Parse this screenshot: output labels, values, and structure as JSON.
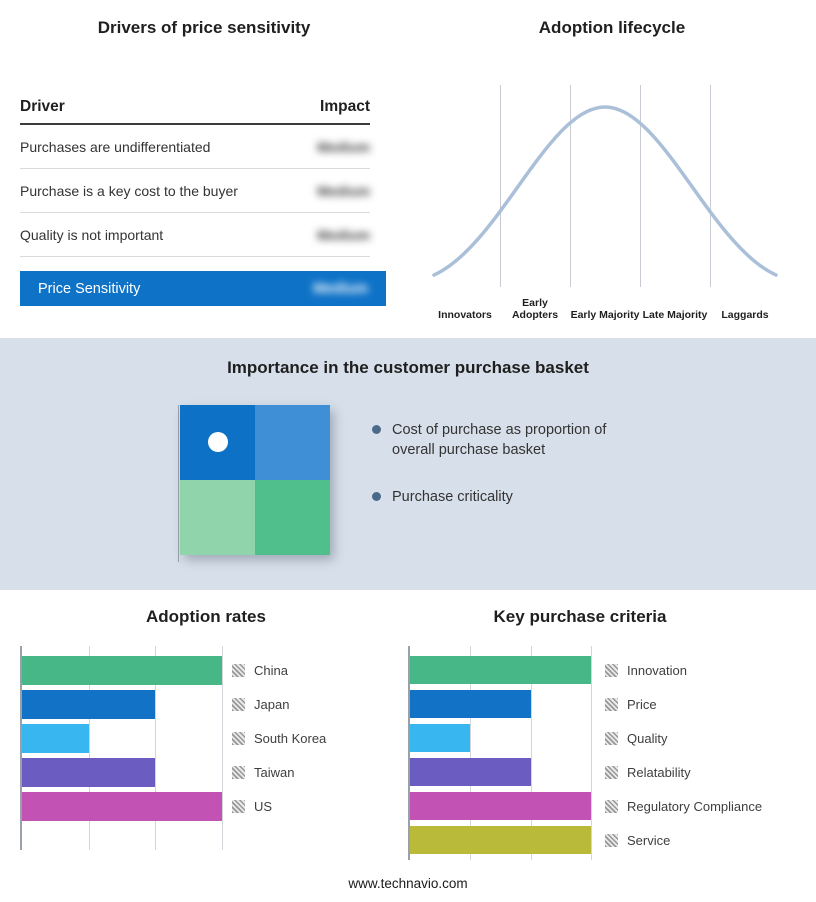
{
  "colors": {
    "accent_blue": "#0e72c7",
    "curve": "#aabfd8",
    "mid_bg": "#d7e0ea",
    "quadrant_tl": "#0d71c6",
    "quadrant_tr": "#3e8fd6",
    "quadrant_bl": "#90d4ab",
    "quadrant_br": "#50bf8b"
  },
  "top": {
    "drivers": {
      "title": "Drivers of price sensitivity",
      "columns": {
        "driver": "Driver",
        "impact": "Impact"
      },
      "rows": [
        {
          "driver": "Purchases are undifferentiated",
          "impact": "Medium"
        },
        {
          "driver": "Purchase is a key cost to the buyer",
          "impact": "Medium"
        },
        {
          "driver": "Quality is not important",
          "impact": "Medium"
        }
      ],
      "highlight": {
        "driver": "Price Sensitivity",
        "impact": "Medium"
      }
    },
    "lifecycle": {
      "title": "Adoption lifecycle",
      "stages": [
        "Innovators",
        "Early Adopters",
        "Early Majority",
        "Late Majority",
        "Laggards"
      ]
    }
  },
  "middle": {
    "title": "Importance in the customer purchase basket",
    "bullets": [
      "Cost of purchase as proportion of overall purchase basket",
      "Purchase criticality"
    ]
  },
  "footer": "www.technavio.com",
  "chart_data": [
    {
      "type": "bar",
      "title": "Adoption rates",
      "orientation": "horizontal",
      "categories": [
        "China",
        "Japan",
        "South Korea",
        "Taiwan",
        "US"
      ],
      "values": [
        3,
        2,
        1,
        2,
        3
      ],
      "colors": [
        "#47b787",
        "#1273c6",
        "#38b6f0",
        "#6a5cc0",
        "#c253b5"
      ],
      "xlim": [
        0,
        3
      ],
      "grid": true,
      "legend_position": "right"
    },
    {
      "type": "bar",
      "title": "Key purchase criteria",
      "orientation": "horizontal",
      "categories": [
        "Innovation",
        "Price",
        "Quality",
        "Relatability",
        "Regulatory Compliance",
        "Service"
      ],
      "values": [
        3,
        2,
        1,
        2,
        3,
        3
      ],
      "colors": [
        "#47b787",
        "#1273c6",
        "#38b6f0",
        "#6a5cc0",
        "#c253b5",
        "#b9ba3a"
      ],
      "xlim": [
        0,
        3
      ],
      "grid": true,
      "legend_position": "right"
    },
    {
      "type": "line",
      "title": "Adoption lifecycle",
      "shape": "bell-curve",
      "categories": [
        "Innovators",
        "Early Adopters",
        "Early Majority",
        "Late Majority",
        "Laggards"
      ],
      "peak_stage": "Early Majority"
    }
  ]
}
